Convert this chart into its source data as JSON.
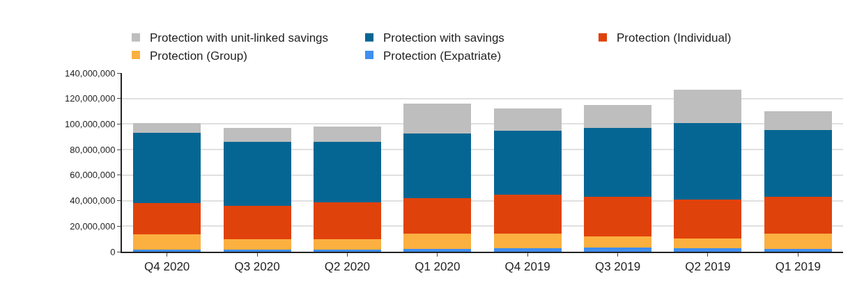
{
  "chart_data": {
    "type": "bar",
    "stacked": true,
    "legend": "top",
    "grid": "y",
    "categories": [
      "Q4 2020",
      "Q3 2020",
      "Q2 2020",
      "Q1 2020",
      "Q4 2019",
      "Q3 2019",
      "Q2 2019",
      "Q1 2019"
    ],
    "series": [
      {
        "name": "Protection (Expatriate)",
        "color": "#3f8ef0",
        "values": [
          1700000,
          1900000,
          1700000,
          2100000,
          2800000,
          3200000,
          2800000,
          2400000
        ]
      },
      {
        "name": "Protection (Group)",
        "color": "#fbb040",
        "values": [
          11800000,
          7700000,
          7900000,
          11800000,
          11100000,
          8800000,
          7700000,
          11900000
        ]
      },
      {
        "name": "Protection (Individual)",
        "color": "#e0420c",
        "values": [
          24600000,
          26400000,
          28900000,
          28300000,
          30800000,
          31200000,
          30200000,
          28900000
        ]
      },
      {
        "name": "Protection with savings",
        "color": "#066693",
        "values": [
          55300000,
          49900000,
          47400000,
          50500000,
          49900000,
          53600000,
          59900000,
          52100000
        ]
      },
      {
        "name": "Protection with unit-linked savings",
        "color": "#bebebe",
        "values": [
          7300000,
          11100000,
          12200000,
          23600000,
          17600000,
          18000000,
          26200000,
          15000000
        ]
      }
    ],
    "ylim": [
      0,
      140000000
    ],
    "yticks": [
      {
        "value": 0,
        "label": "0"
      },
      {
        "value": 20000000,
        "label": "20,000,000"
      },
      {
        "value": 40000000,
        "label": "40,000,000"
      },
      {
        "value": 60000000,
        "label": "60,000,000"
      },
      {
        "value": 80000000,
        "label": "80,000,000"
      },
      {
        "value": 100000000,
        "label": "100,000,000"
      },
      {
        "value": 120000000,
        "label": "120,000,000"
      },
      {
        "value": 140000000,
        "label": "140,000,000"
      }
    ]
  }
}
